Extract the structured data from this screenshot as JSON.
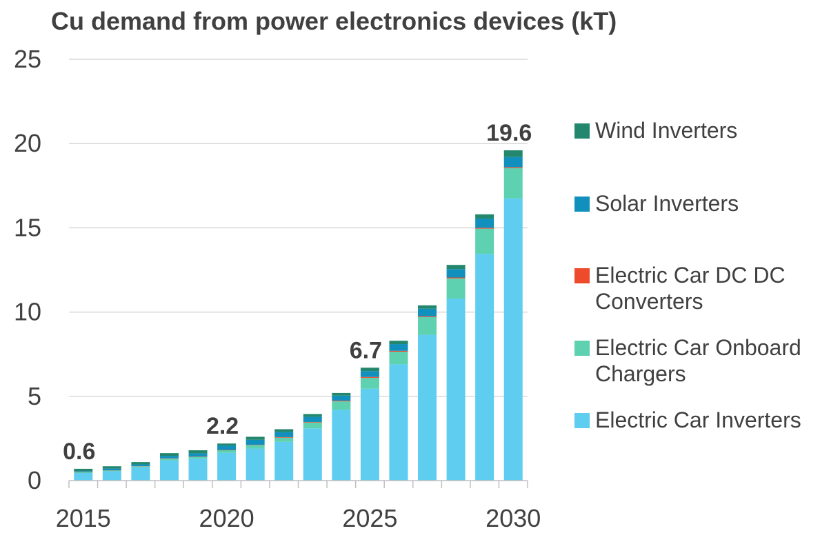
{
  "chart_data": {
    "type": "bar",
    "stacked": true,
    "title": "Cu demand from power electronics devices (kT)",
    "xlabel": "",
    "ylabel": "",
    "ylim": [
      0,
      25
    ],
    "yticks": [
      "0",
      "5",
      "10",
      "15",
      "20",
      "25"
    ],
    "xtick_labels": [
      "2015",
      "2020",
      "2025",
      "2030"
    ],
    "grid": true,
    "legend_position": "right",
    "categories": [
      "2015",
      "2016",
      "2017",
      "2018",
      "2019",
      "2020",
      "2021",
      "2022",
      "2023",
      "2024",
      "2025",
      "2026",
      "2027",
      "2028",
      "2029",
      "2030"
    ],
    "series": [
      {
        "name": "Electric Car Inverters",
        "color": "#5ECDF0",
        "values": [
          0.45,
          0.55,
          0.8,
          1.2,
          1.3,
          1.65,
          1.9,
          2.3,
          3.1,
          4.2,
          5.45,
          6.9,
          8.65,
          10.8,
          13.45,
          16.75
        ]
      },
      {
        "name": "Electric Car Onboard Chargers",
        "color": "#5ED1B0",
        "values": [
          0.05,
          0.05,
          0.05,
          0.1,
          0.1,
          0.15,
          0.2,
          0.25,
          0.35,
          0.5,
          0.65,
          0.75,
          1.05,
          1.2,
          1.5,
          1.8
        ]
      },
      {
        "name": "Electric Car DC DC Converters",
        "color": "#EE4A2C",
        "values": [
          0.01,
          0.01,
          0.01,
          0.02,
          0.02,
          0.02,
          0.02,
          0.03,
          0.03,
          0.04,
          0.05,
          0.05,
          0.05,
          0.05,
          0.05,
          0.05
        ]
      },
      {
        "name": "Solar Inverters",
        "color": "#1190BD",
        "values": [
          0.05,
          0.1,
          0.1,
          0.15,
          0.2,
          0.25,
          0.3,
          0.3,
          0.3,
          0.3,
          0.35,
          0.4,
          0.45,
          0.5,
          0.55,
          0.6
        ]
      },
      {
        "name": "Wind Inverters",
        "color": "#23876E",
        "values": [
          0.14,
          0.14,
          0.14,
          0.16,
          0.18,
          0.13,
          0.18,
          0.17,
          0.17,
          0.16,
          0.2,
          0.2,
          0.2,
          0.25,
          0.25,
          0.4
        ]
      }
    ],
    "annotations": [
      {
        "category": "2015",
        "text": "0.6"
      },
      {
        "category": "2020",
        "text": "2.2"
      },
      {
        "category": "2025",
        "text": "6.7"
      },
      {
        "category": "2030",
        "text": "19.6"
      }
    ]
  }
}
